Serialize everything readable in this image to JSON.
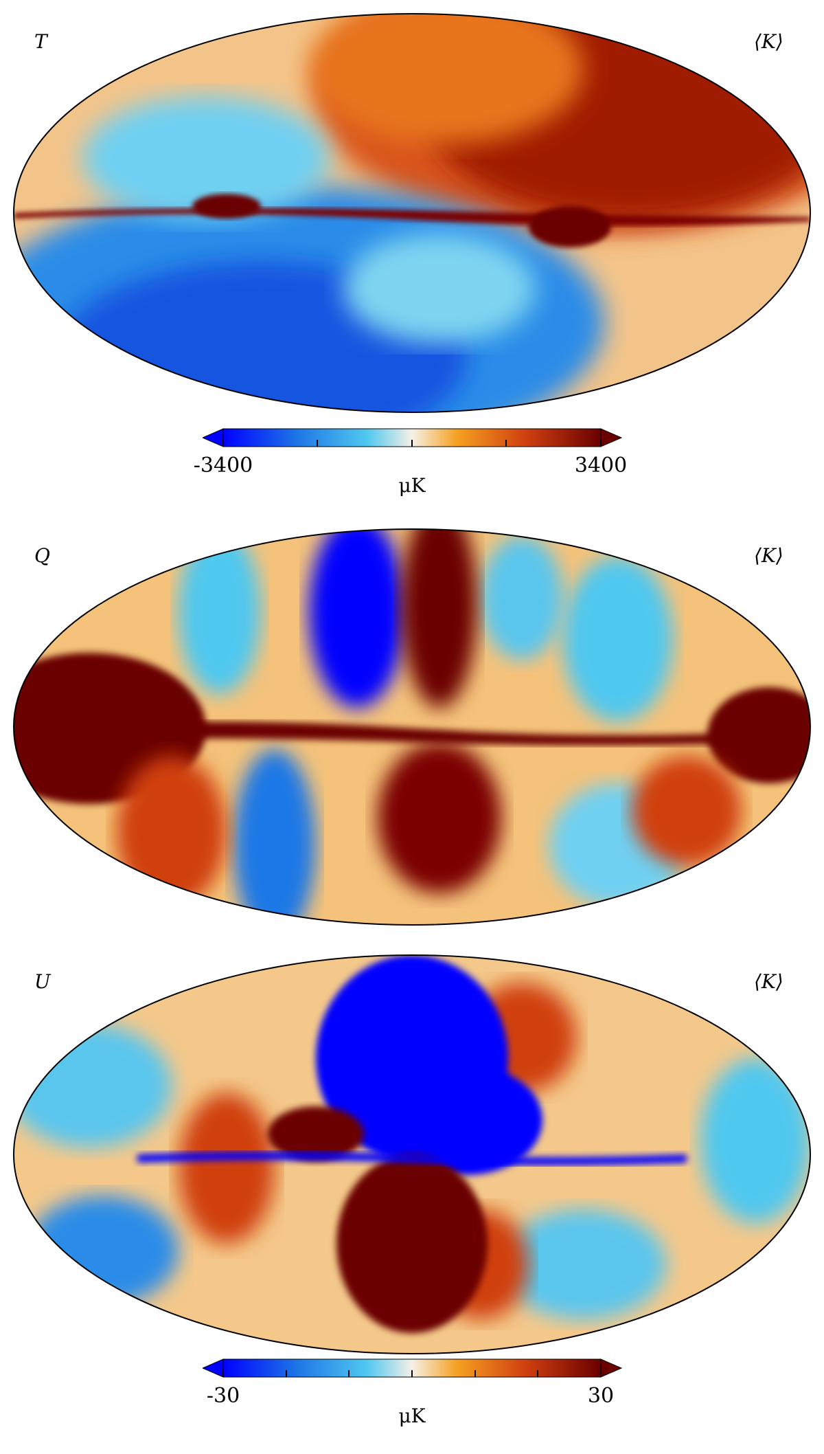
{
  "panels": [
    {
      "stokes": "T",
      "unit_note": "⟨K⟩"
    },
    {
      "stokes": "Q",
      "unit_note": "⟨K⟩"
    },
    {
      "stokes": "U",
      "unit_note": "⟨K⟩"
    }
  ],
  "colorbars": [
    {
      "min_label": "-3400",
      "max_label": "3400",
      "unit": "μK",
      "ticks": 5
    },
    {
      "min_label": "-30",
      "max_label": "30",
      "unit": "μK",
      "ticks": 7
    }
  ],
  "colors": {
    "deep_blue": "#0000ff",
    "blue": "#1f78e6",
    "light_blue": "#4fc8f0",
    "white": "#f5f0e6",
    "orange": "#f5a020",
    "red": "#d04010",
    "dark_red": "#6a0000"
  }
}
